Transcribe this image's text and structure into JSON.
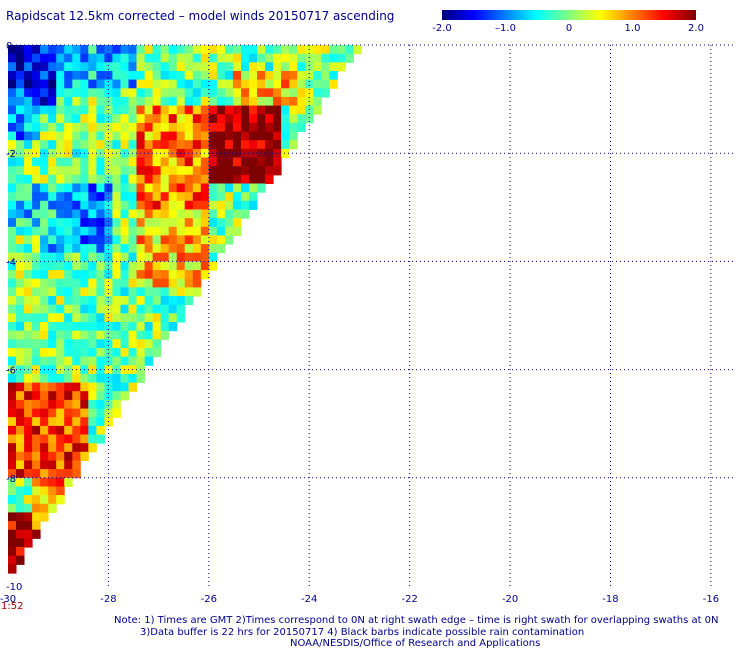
{
  "title": "Rapidscat 12.5km corrected – model winds 20150717 ascending",
  "colorbar": {
    "ticks": [
      {
        "label": "-2.0",
        "value": -2.0
      },
      {
        "label": "–1.0",
        "value": -1.0
      },
      {
        "label": "0",
        "value": 0
      },
      {
        "label": "1.0",
        "value": 1.0
      },
      {
        "label": "2.0",
        "value": 2.0
      }
    ],
    "range": [
      -2.0,
      2.0
    ],
    "colors": [
      "#00007f",
      "#0000ff",
      "#007fff",
      "#00ffff",
      "#7fff7f",
      "#ffff00",
      "#ff7f00",
      "#ff0000",
      "#7f0000"
    ]
  },
  "chart_data": {
    "type": "heatmap",
    "title": "Rapidscat 12.5km corrected – model winds 20150717 ascending",
    "x_range": [
      -30,
      -15.5
    ],
    "y_range": [
      -10,
      0
    ],
    "x_ticks": [
      -30,
      -28,
      -26,
      -24,
      -22,
      -20,
      -18,
      -16
    ],
    "y_ticks": [
      0,
      -2,
      -4,
      -6,
      -8,
      -10
    ],
    "grid": true,
    "grid_style": "dotted",
    "colorbar_range": [
      -2.0,
      2.0
    ],
    "swath_edge": [
      [
        -30,
        -10
      ],
      [
        -22.9,
        0
      ]
    ],
    "regions": [
      {
        "lon_min": -30,
        "lon_max": -29,
        "lat_min": -1.2,
        "lat_max": 0,
        "value": -1.6
      },
      {
        "lon_min": -29,
        "lon_max": -27.5,
        "lat_min": -0.8,
        "lat_max": 0,
        "value": -0.7
      },
      {
        "lon_min": -30,
        "lon_max": -29.3,
        "lat_min": -1.8,
        "lat_max": -0.8,
        "value": -0.9
      },
      {
        "lon_min": -29.3,
        "lon_max": -28,
        "lat_min": -3.8,
        "lat_max": -2.5,
        "value": -0.9
      },
      {
        "lon_min": -30,
        "lon_max": -29,
        "lat_min": -3.6,
        "lat_max": -2.6,
        "value": -0.6
      },
      {
        "lon_min": -27,
        "lon_max": -24.5,
        "lat_min": -2.6,
        "lat_max": -1.2,
        "value": 2.0
      },
      {
        "lon_min": -27.5,
        "lon_max": -26,
        "lat_min": -3.5,
        "lat_max": -1.2,
        "value": 1.0
      },
      {
        "lon_min": -25.5,
        "lon_max": -24,
        "lat_min": -1.2,
        "lat_max": -0.5,
        "value": 0.7
      },
      {
        "lon_min": -27.5,
        "lon_max": -26,
        "lat_min": -4.5,
        "lat_max": -3,
        "value": 0.7
      },
      {
        "lon_min": -30,
        "lon_max": -28.4,
        "lat_min": -8,
        "lat_max": -6.2,
        "value": 1.3
      },
      {
        "lon_min": -30,
        "lon_max": -29.3,
        "lat_min": -9.8,
        "lat_max": -8.7,
        "value": 1.8
      },
      {
        "lon_min": -29.5,
        "lon_max": -28.5,
        "lat_min": -9,
        "lat_max": -8,
        "value": 0.9
      }
    ]
  },
  "footer": {
    "note_line_1": "Note: 1) Times are GMT 2)Times correspond to 0N at right swath edge – time is right swath for overlapping swaths at 0N",
    "note_line_2": "3)Data buffer is 22 hrs for 20150717 4) Black barbs indicate possible rain contamination",
    "note_line_3": "NOAA/NESDIS/Office of Research and Applications",
    "time_label": "1:52"
  }
}
